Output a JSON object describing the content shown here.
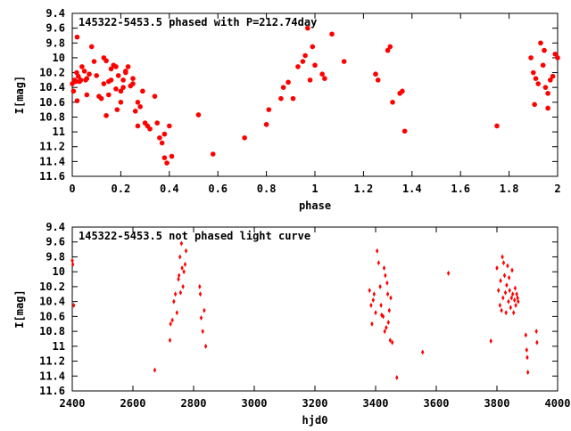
{
  "chart_data": [
    {
      "type": "scatter",
      "title": "145322-5453.5 phased with P=212.74day",
      "xlabel": "phase",
      "ylabel": "I[mag]",
      "xlim": [
        0,
        2
      ],
      "ylim": [
        11.6,
        9.4
      ],
      "y_inverted": true,
      "grid": false,
      "marker": "filled-circle",
      "color": "#ff0000",
      "xticks": [
        0,
        0.2,
        0.4,
        0.6,
        0.8,
        1,
        1.2,
        1.4,
        1.6,
        1.8,
        2
      ],
      "xtick_labels": [
        "0",
        "0.2",
        "0.4",
        "0.6",
        "0.8",
        "1",
        "1.2",
        "1.4",
        "1.6",
        "1.8",
        "2"
      ],
      "yticks": [
        9.4,
        9.6,
        9.8,
        10,
        10.2,
        10.4,
        10.6,
        10.8,
        11,
        11.2,
        11.4,
        11.6
      ],
      "ytick_labels": [
        "9.4",
        "9.6",
        "9.8",
        "10",
        "10.2",
        "10.4",
        "10.6",
        "10.8",
        "11",
        "11.2",
        "11.4",
        "11.6"
      ],
      "series": [
        {
          "points": [
            [
              0.0,
              10.35
            ],
            [
              0.005,
              10.45
            ],
            [
              0.01,
              10.3
            ],
            [
              0.015,
              10.32
            ],
            [
              0.018,
              10.2
            ],
            [
              0.02,
              10.58
            ],
            [
              0.025,
              10.25
            ],
            [
              0.03,
              10.32
            ],
            [
              0.035,
              10.3
            ],
            [
              0.04,
              10.12
            ],
            [
              0.05,
              10.18
            ],
            [
              0.06,
              10.28
            ],
            [
              0.07,
              10.22
            ],
            [
              0.06,
              10.5
            ],
            [
              0.02,
              9.72
            ],
            [
              0.055,
              10.3
            ],
            [
              0.08,
              9.85
            ],
            [
              0.09,
              10.05
            ],
            [
              0.1,
              10.24
            ],
            [
              0.11,
              10.52
            ],
            [
              0.12,
              10.55
            ],
            [
              0.13,
              10.35
            ],
            [
              0.13,
              10.0
            ],
            [
              0.14,
              10.04
            ],
            [
              0.14,
              10.78
            ],
            [
              0.15,
              10.32
            ],
            [
              0.15,
              10.5
            ],
            [
              0.16,
              10.3
            ],
            [
              0.16,
              10.15
            ],
            [
              0.17,
              10.1
            ],
            [
              0.18,
              10.12
            ],
            [
              0.18,
              10.42
            ],
            [
              0.185,
              10.7
            ],
            [
              0.19,
              10.24
            ],
            [
              0.2,
              10.45
            ],
            [
              0.21,
              10.4
            ],
            [
              0.22,
              10.18
            ],
            [
              0.2,
              10.6
            ],
            [
              0.21,
              10.3
            ],
            [
              0.23,
              10.12
            ],
            [
              0.24,
              10.38
            ],
            [
              0.25,
              10.35
            ],
            [
              0.25,
              10.28
            ],
            [
              0.26,
              10.72
            ],
            [
              0.27,
              10.92
            ],
            [
              0.27,
              10.6
            ],
            [
              0.28,
              10.66
            ],
            [
              0.29,
              10.45
            ],
            [
              0.22,
              10.2
            ],
            [
              0.3,
              10.88
            ],
            [
              0.31,
              10.92
            ],
            [
              0.32,
              10.96
            ],
            [
              0.34,
              10.52
            ],
            [
              0.35,
              10.88
            ],
            [
              0.36,
              11.08
            ],
            [
              0.37,
              11.15
            ],
            [
              0.38,
              11.03
            ],
            [
              0.38,
              11.35
            ],
            [
              0.39,
              11.42
            ],
            [
              0.4,
              10.92
            ],
            [
              0.41,
              11.33
            ],
            [
              0.52,
              10.77
            ],
            [
              0.58,
              11.3
            ],
            [
              0.71,
              11.08
            ],
            [
              0.8,
              10.9
            ],
            [
              0.81,
              10.7
            ],
            [
              0.86,
              10.55
            ],
            [
              0.87,
              10.4
            ],
            [
              0.89,
              10.33
            ],
            [
              0.91,
              10.55
            ],
            [
              0.93,
              10.12
            ],
            [
              0.95,
              10.05
            ],
            [
              0.96,
              9.97
            ],
            [
              0.97,
              9.6
            ],
            [
              0.98,
              10.3
            ],
            [
              0.99,
              9.85
            ],
            [
              1.0,
              10.1
            ],
            [
              1.03,
              10.22
            ],
            [
              1.04,
              10.28
            ],
            [
              1.07,
              9.68
            ],
            [
              1.12,
              10.05
            ],
            [
              1.25,
              10.22
            ],
            [
              1.26,
              10.3
            ],
            [
              1.3,
              9.9
            ],
            [
              1.31,
              9.85
            ],
            [
              1.32,
              10.6
            ],
            [
              1.35,
              10.48
            ],
            [
              1.36,
              10.45
            ],
            [
              1.37,
              10.99
            ],
            [
              1.75,
              10.92
            ],
            [
              1.89,
              10.0
            ],
            [
              1.9,
              10.2
            ],
            [
              1.91,
              10.28
            ],
            [
              1.92,
              10.35
            ],
            [
              1.93,
              9.8
            ],
            [
              1.94,
              10.1
            ],
            [
              1.95,
              10.4
            ],
            [
              1.96,
              10.48
            ],
            [
              1.96,
              10.68
            ],
            [
              1.97,
              10.3
            ],
            [
              1.98,
              10.25
            ],
            [
              1.99,
              9.95
            ],
            [
              2.0,
              10.0
            ],
            [
              1.905,
              10.63
            ],
            [
              1.945,
              9.9
            ]
          ]
        }
      ]
    },
    {
      "type": "scatter",
      "title": "145322-5453.5 not phased light curve",
      "xlabel": "hjd0",
      "ylabel": "I[mag]",
      "xlim": [
        2400,
        4000
      ],
      "ylim": [
        11.6,
        9.4
      ],
      "y_inverted": true,
      "grid": false,
      "marker": "small-diamond",
      "color": "#ff0000",
      "xticks": [
        2400,
        2600,
        2800,
        3000,
        3200,
        3400,
        3600,
        3800,
        4000
      ],
      "xtick_labels": [
        "2400",
        "2600",
        "2800",
        "3000",
        "3200",
        "3400",
        "3600",
        "3800",
        "4000"
      ],
      "yticks": [
        9.4,
        9.6,
        9.8,
        10,
        10.2,
        10.4,
        10.6,
        10.8,
        11,
        11.2,
        11.4,
        11.6
      ],
      "ytick_labels": [
        "9.4",
        "9.6",
        "9.8",
        "10",
        "10.2",
        "10.4",
        "10.6",
        "10.8",
        "11",
        "11.2",
        "11.4",
        "11.6"
      ],
      "series": [
        {
          "points": [
            [
              2400,
              9.85
            ],
            [
              2402,
              9.9
            ],
            [
              2405,
              10.45
            ],
            [
              2672,
              11.32
            ],
            [
              2722,
              10.92
            ],
            [
              2724,
              10.7
            ],
            [
              2730,
              10.65
            ],
            [
              2735,
              10.4
            ],
            [
              2740,
              10.3
            ],
            [
              2745,
              10.55
            ],
            [
              2750,
              10.1
            ],
            [
              2752,
              10.05
            ],
            [
              2755,
              9.8
            ],
            [
              2757,
              10.28
            ],
            [
              2760,
              9.62
            ],
            [
              2762,
              9.95
            ],
            [
              2765,
              10.2
            ],
            [
              2768,
              10.0
            ],
            [
              2772,
              9.9
            ],
            [
              2775,
              9.72
            ],
            [
              2820,
              10.2
            ],
            [
              2822,
              10.3
            ],
            [
              2825,
              10.62
            ],
            [
              2830,
              10.8
            ],
            [
              2835,
              10.52
            ],
            [
              2840,
              11.0
            ],
            [
              3380,
              10.25
            ],
            [
              3385,
              10.45
            ],
            [
              3388,
              10.7
            ],
            [
              3392,
              10.38
            ],
            [
              3395,
              10.3
            ],
            [
              3400,
              10.55
            ],
            [
              3405,
              9.72
            ],
            [
              3410,
              9.88
            ],
            [
              3415,
              10.2
            ],
            [
              3418,
              10.45
            ],
            [
              3420,
              10.58
            ],
            [
              3425,
              10.6
            ],
            [
              3428,
              9.95
            ],
            [
              3430,
              10.8
            ],
            [
              3432,
              10.05
            ],
            [
              3435,
              10.75
            ],
            [
              3438,
              10.15
            ],
            [
              3440,
              10.3
            ],
            [
              3442,
              10.68
            ],
            [
              3445,
              10.52
            ],
            [
              3448,
              10.92
            ],
            [
              3450,
              10.35
            ],
            [
              3455,
              10.95
            ],
            [
              3470,
              11.42
            ],
            [
              3555,
              11.08
            ],
            [
              3640,
              10.02
            ],
            [
              3780,
              10.93
            ],
            [
              3800,
              9.95
            ],
            [
              3805,
              10.25
            ],
            [
              3810,
              10.45
            ],
            [
              3812,
              10.12
            ],
            [
              3815,
              10.52
            ],
            [
              3818,
              9.8
            ],
            [
              3820,
              10.35
            ],
            [
              3822,
              9.88
            ],
            [
              3825,
              10.05
            ],
            [
              3828,
              10.28
            ],
            [
              3830,
              10.55
            ],
            [
              3832,
              10.18
            ],
            [
              3835,
              9.92
            ],
            [
              3838,
              10.4
            ],
            [
              3840,
              10.08
            ],
            [
              3842,
              10.25
            ],
            [
              3845,
              10.48
            ],
            [
              3848,
              10.35
            ],
            [
              3850,
              9.98
            ],
            [
              3852,
              10.3
            ],
            [
              3855,
              10.55
            ],
            [
              3858,
              10.38
            ],
            [
              3860,
              10.22
            ],
            [
              3862,
              10.45
            ],
            [
              3865,
              10.3
            ],
            [
              3868,
              10.35
            ],
            [
              3870,
              10.4
            ],
            [
              3895,
              10.85
            ],
            [
              3898,
              11.05
            ],
            [
              3900,
              11.15
            ],
            [
              3902,
              11.35
            ],
            [
              3930,
              10.8
            ],
            [
              3932,
              10.95
            ]
          ]
        }
      ]
    }
  ]
}
